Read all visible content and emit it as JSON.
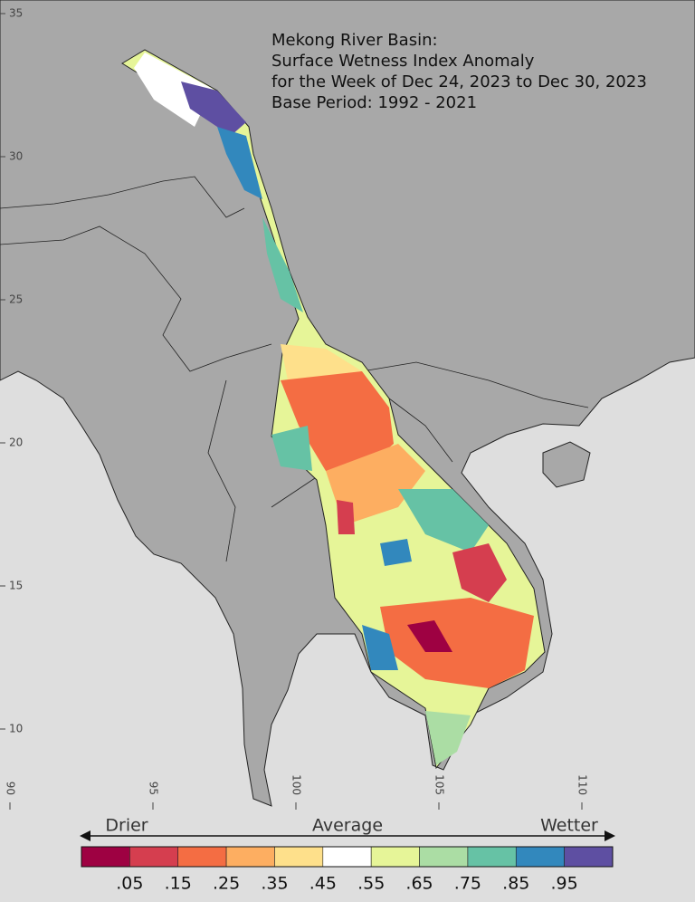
{
  "map": {
    "title_lines": [
      "Mekong River Basin:",
      "Surface Wetness Index Anomaly",
      "for the Week of Dec 24, 2023 to Dec 30, 2023",
      "Base Period: 1992 - 2021"
    ],
    "lat_ticks": [
      35,
      30,
      25,
      20,
      15,
      10
    ],
    "lon_ticks": [
      90,
      95,
      100,
      105,
      110
    ]
  },
  "legend": {
    "left": "Drier",
    "center": "Average",
    "right": "Wetter",
    "colors": [
      "#9e0142",
      "#d53e4f",
      "#f46d43",
      "#fdae61",
      "#fee08b",
      "#ffffff",
      "#e6f598",
      "#abdda4",
      "#66c2a5",
      "#3288bd",
      "#5e4fa2"
    ],
    "tick_labels": [
      ".05",
      ".15",
      ".25",
      ".35",
      ".45",
      ".55",
      ".65",
      ".75",
      ".85",
      ".95"
    ]
  }
}
